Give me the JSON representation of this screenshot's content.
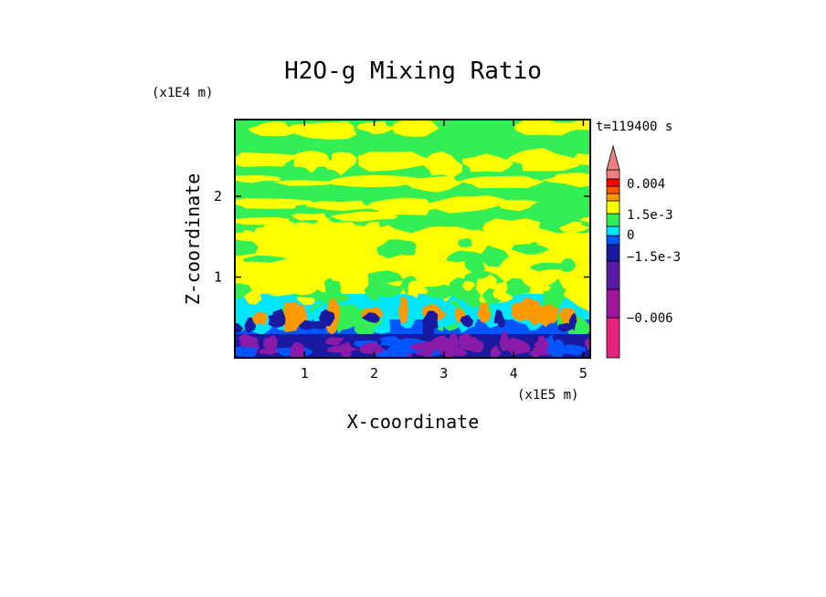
{
  "chart_data": {
    "type": "heatmap",
    "title": "H2O-g Mixing Ratio",
    "xlabel": "X-coordinate",
    "ylabel": "Z-coordinate",
    "x_unit": "(x1E5 m)",
    "y_unit": "(x1E4 m)",
    "time_label": "t=119400 s",
    "xlim": [
      0,
      5.1
    ],
    "ylim": [
      0,
      2.95
    ],
    "x_ticks": [
      {
        "value": 1,
        "label": "1"
      },
      {
        "value": 2,
        "label": "2"
      },
      {
        "value": 3,
        "label": "3"
      },
      {
        "value": 4,
        "label": "4"
      },
      {
        "value": 5,
        "label": "5"
      }
    ],
    "y_ticks": [
      {
        "value": 1,
        "label": "1"
      },
      {
        "value": 2,
        "label": "2"
      }
    ],
    "colorbar": {
      "levels": [
        {
          "color": "#e8237f"
        },
        {
          "color": "#a0169a"
        },
        {
          "color": "#5b1aa3"
        },
        {
          "color": "#1a1aa0"
        },
        {
          "color": "#0055ff"
        },
        {
          "color": "#00e6ff"
        },
        {
          "color": "#33ee55"
        },
        {
          "color": "#ffff00"
        },
        {
          "color": "#ff9900"
        },
        {
          "color": "#ff5500"
        },
        {
          "color": "#ff0000"
        },
        {
          "color": "#f08080"
        }
      ],
      "labels": [
        "0.004",
        "1.5e-3",
        "0",
        "−1.5e-3",
        "−0.006"
      ]
    },
    "field_description_colors": {
      "upper_green": "#33ee55",
      "upper_yellow": "#ffff00",
      "cyan": "#00e6ff",
      "orange": "#ff9900",
      "blue": "#0055ff",
      "navy": "#1a1aa0",
      "purple": "#8a1aa8"
    }
  }
}
